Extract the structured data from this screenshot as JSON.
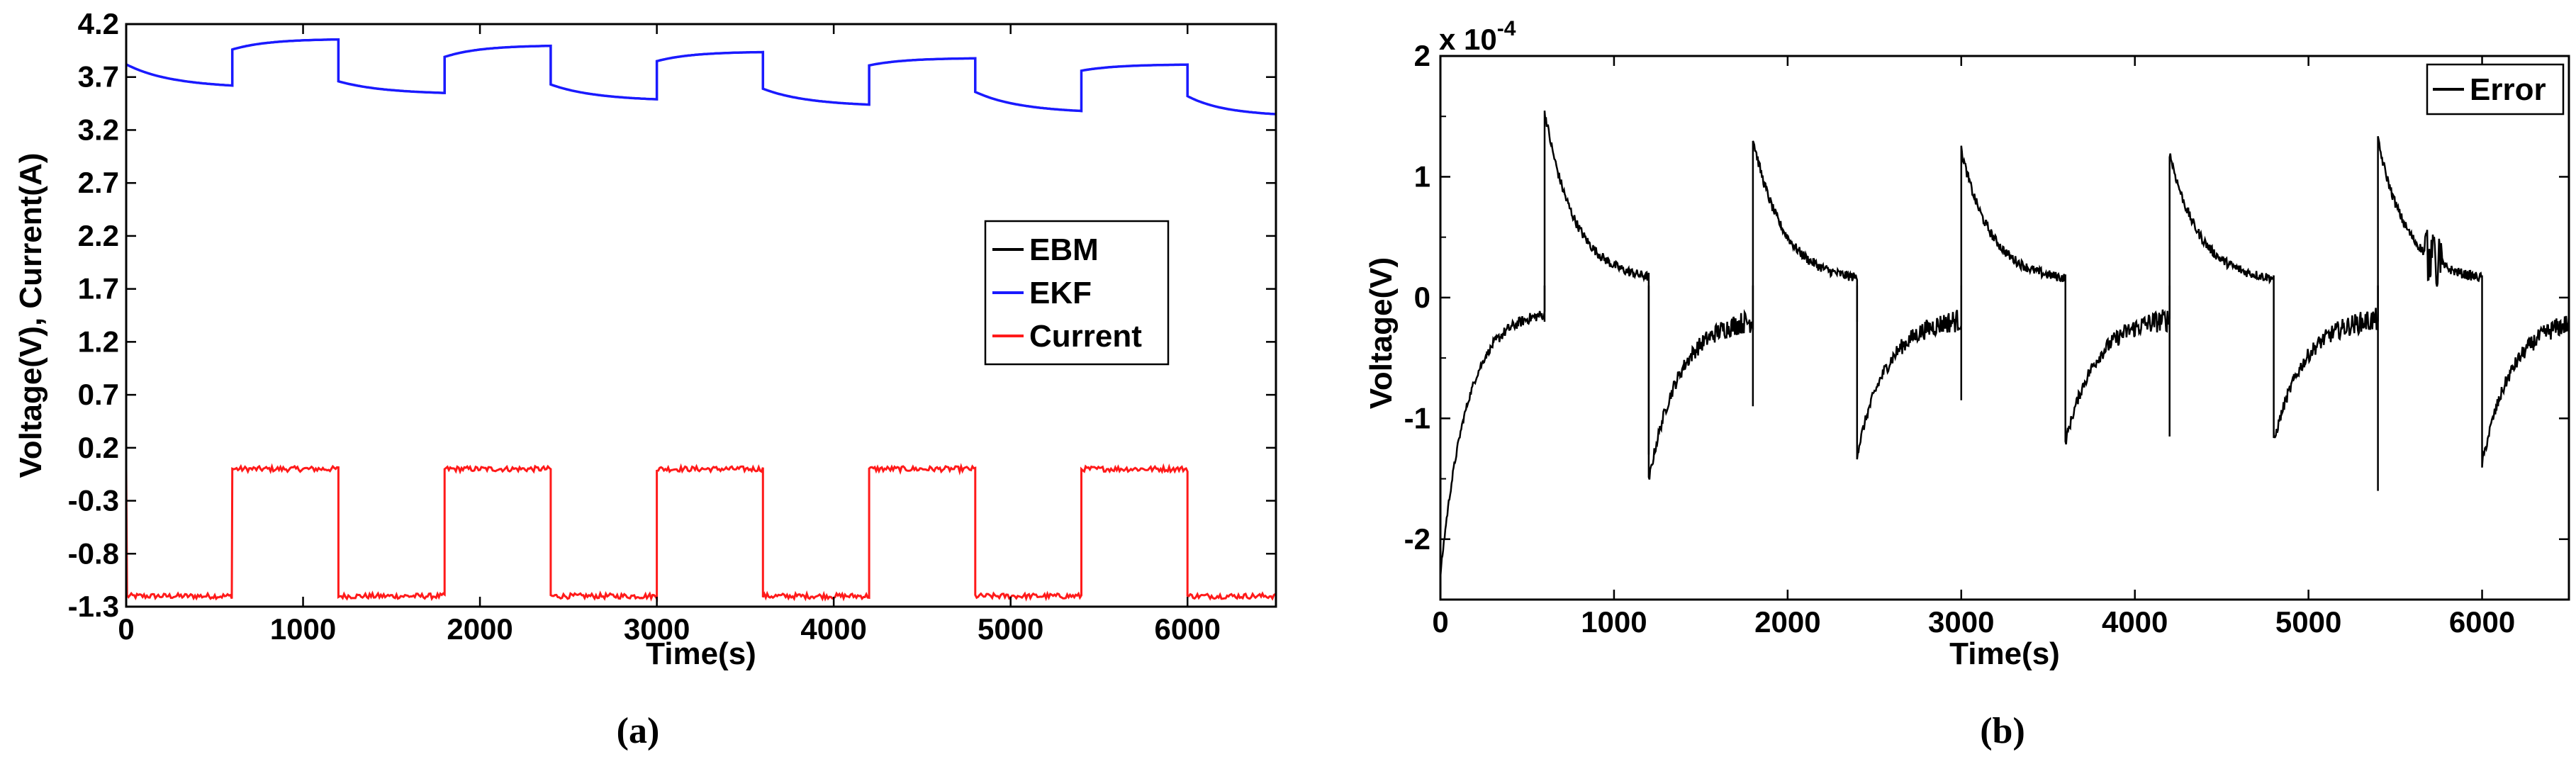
{
  "chart_data": [
    {
      "type": "line",
      "xlabel": "Time(s)",
      "ylabel": "Voltage(V), Current(A)",
      "xlim": [
        0,
        6500
      ],
      "ylim": [
        -1.3,
        4.2
      ],
      "xticks": [
        "0",
        "1000",
        "2000",
        "3000",
        "4000",
        "5000",
        "6000"
      ],
      "yticks": [
        "-1.3",
        "-0.8",
        "-0.3",
        "0.2",
        "0.7",
        "1.2",
        "1.7",
        "2.2",
        "2.7",
        "3.2",
        "3.7",
        "4.2"
      ],
      "legend_position": "right",
      "series": [
        {
          "name": "EBM",
          "color": "#000000",
          "note": "overlaps EKF"
        },
        {
          "name": "EKF",
          "color": "#1a1aff",
          "cycle_start_values": [
            3.82,
            3.96,
            3.92,
            3.88,
            3.84,
            3.8
          ],
          "cycle_end_values": [
            3.62,
            3.57,
            3.52,
            3.47,
            3.42,
            3.37
          ]
        },
        {
          "name": "Current",
          "color": "#ff1a1a",
          "high": 0.0,
          "low": -1.2,
          "switch_times": [
            600,
            1200,
            1800,
            2400,
            3000,
            3600,
            4200,
            4800,
            5400,
            6000
          ]
        }
      ],
      "caption": "(a)"
    },
    {
      "type": "line",
      "xlabel": "Time(s)",
      "ylabel": "Voltage(V)",
      "xlim": [
        0,
        6500
      ],
      "ylim": [
        -2.5,
        2
      ],
      "multiplier_base": "x 10",
      "multiplier_exp": "-4",
      "xticks": [
        "0",
        "1000",
        "2000",
        "3000",
        "4000",
        "5000",
        "6000"
      ],
      "yticks": [
        "-2",
        "-1",
        "0",
        "1",
        "2"
      ],
      "legend_position": "top-right",
      "series": [
        {
          "name": "Error",
          "color": "#000000",
          "peaks": [
            1.55,
            1.32,
            1.22,
            1.2,
            1.3
          ],
          "troughs": [
            -1.52,
            -1.3,
            -1.2,
            -1.2,
            -1.38
          ],
          "start_value": -2.3
        }
      ],
      "caption": "(b)"
    }
  ]
}
